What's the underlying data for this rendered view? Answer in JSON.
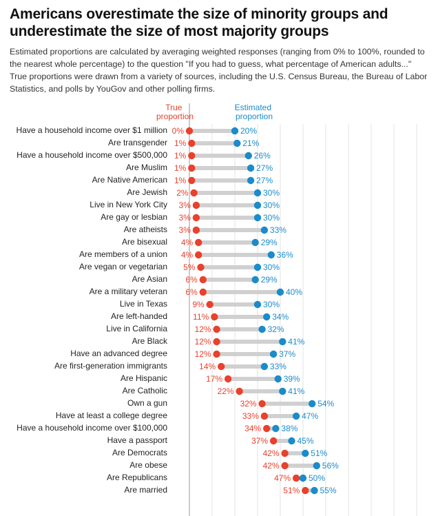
{
  "chart_data": {
    "type": "dumbbell",
    "title": "Americans overestimate the size of minority groups and underestimate the size of most majority groups",
    "subtitle": "Estimated proportions are calculated by averaging weighted responses (ranging from 0% to 100%, rounded to the nearest whole percentage) to the question \"If you had to guess, what percentage of American adults...\" True proportions were drawn from a variety of sources, including the U.S. Census Bureau, the Bureau of Labor Statistics, and polls by YouGov and other polling firms.",
    "categories": [
      "Have a household income over $1 million",
      "Are transgender",
      "Have a household income over $500,000",
      "Are Muslim",
      "Are Native American",
      "Are Jewish",
      "Live in New York City",
      "Are gay or lesbian",
      "Are atheists",
      "Are bisexual",
      "Are members of a union",
      "Are vegan or vegetarian",
      "Are Asian",
      "Are a military veteran",
      "Live in Texas",
      "Are left-handed",
      "Live in California",
      "Are Black",
      "Have an advanced degree",
      "Are first-generation immigrants",
      "Are Hispanic",
      "Are Catholic",
      "Own a gun",
      "Have at least a college degree",
      "Have a household income over $100,000",
      "Have a passport",
      "Are Democrats",
      "Are obese",
      "Are Republicans",
      "Are married"
    ],
    "series": [
      {
        "name": "True proportion",
        "color": "#e8412c",
        "values": [
          0,
          1,
          1,
          1,
          1,
          2,
          3,
          3,
          3,
          4,
          4,
          5,
          6,
          6,
          9,
          11,
          12,
          12,
          12,
          14,
          17,
          22,
          32,
          33,
          34,
          37,
          42,
          42,
          47,
          51
        ],
        "value_labels": [
          "0%",
          "1%",
          "1%",
          "1%",
          "1%",
          "2%",
          "3%",
          "3%",
          "3%",
          "4%",
          "4%",
          "5%",
          "6%",
          "6%",
          "9%",
          "11%",
          "12%",
          "12%",
          "12%",
          "14%",
          "17%",
          "22%",
          "32%",
          "33%",
          "34%",
          "37%",
          "42%",
          "42%",
          "47%",
          "51%"
        ]
      },
      {
        "name": "Estimated proportion",
        "color": "#1b8bcb",
        "values": [
          20,
          21,
          26,
          27,
          27,
          30,
          30,
          30,
          33,
          29,
          36,
          30,
          29,
          40,
          30,
          34,
          32,
          41,
          37,
          33,
          39,
          41,
          54,
          47,
          38,
          45,
          51,
          56,
          50,
          55
        ],
        "value_labels": [
          "20%",
          "21%",
          "26%",
          "27%",
          "27%",
          "30%",
          "30%",
          "30%",
          "33%",
          "29%",
          "36%",
          "30%",
          "29%",
          "40%",
          "30%",
          "34%",
          "32%",
          "41%",
          "37%",
          "33%",
          "39%",
          "41%",
          "54%",
          "47%",
          "38%",
          "45%",
          "51%",
          "56%",
          "50%",
          "55%"
        ]
      }
    ],
    "xlim": [
      0,
      100
    ],
    "xticks": [
      0,
      10,
      20,
      30,
      40,
      50,
      60,
      70,
      80,
      90,
      100
    ],
    "grid": true
  }
}
